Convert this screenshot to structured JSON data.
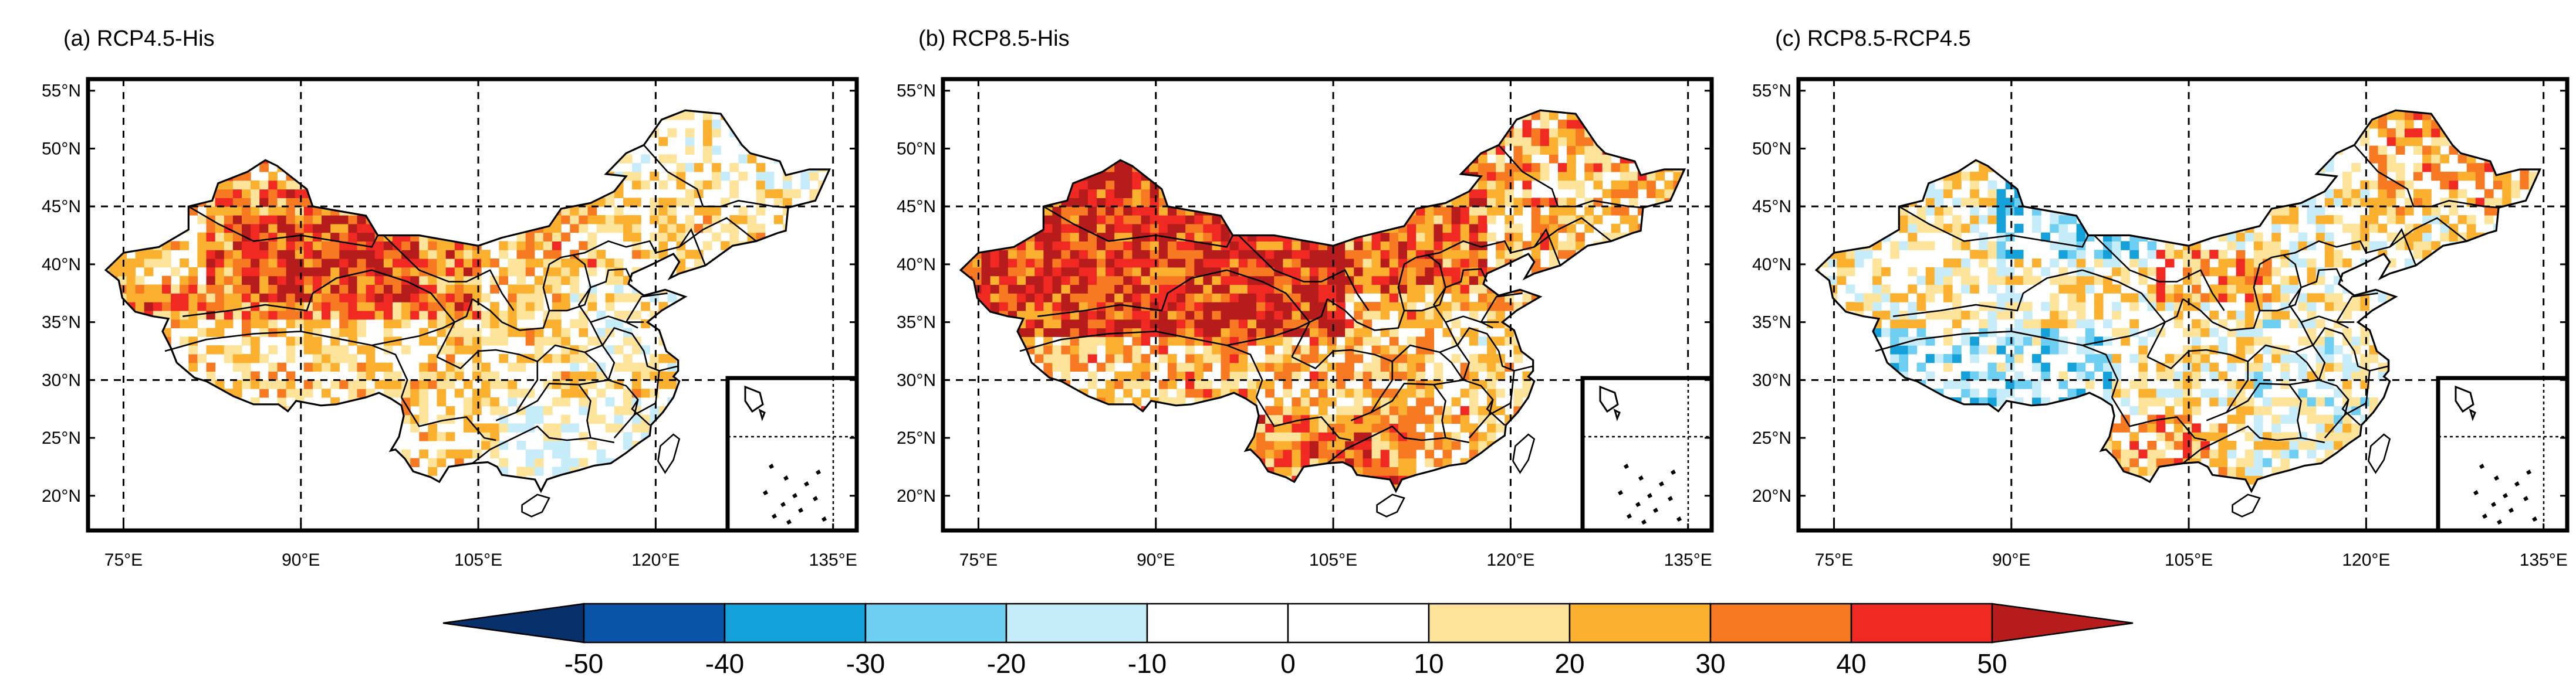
{
  "panels": [
    {
      "title": "(a) RCP4.5-His",
      "pattern": "a"
    },
    {
      "title": "(b) RCP8.5-His",
      "pattern": "b"
    },
    {
      "title": "(c) RCP8.5-RCP4.5",
      "pattern": "c"
    }
  ],
  "axes": {
    "lat_labels": [
      "55°N",
      "50°N",
      "45°N",
      "40°N",
      "35°N",
      "30°N",
      "25°N",
      "20°N"
    ],
    "lat_values": [
      55,
      50,
      45,
      40,
      35,
      30,
      25,
      20
    ],
    "lon_labels": [
      "75°E",
      "90°E",
      "105°E",
      "120°E",
      "135°E"
    ],
    "lon_values": [
      75,
      90,
      105,
      120,
      135
    ],
    "lon_range": [
      72,
      137
    ],
    "lat_range": [
      17,
      56
    ],
    "dashed_lat_lines": [
      45,
      30
    ],
    "dashed_lon_lines": [
      75,
      90,
      105,
      120,
      135
    ]
  },
  "colorbar": {
    "tick_labels": [
      "-50",
      "-40",
      "-30",
      "-20",
      "-10",
      "0",
      "10",
      "20",
      "30",
      "40",
      "50"
    ],
    "colors": [
      "#08306b",
      "#0a54a8",
      "#14a0d8",
      "#6fcff2",
      "#c6ecf9",
      "#ffffff",
      "#ffffff",
      "#fde49a",
      "#fbb12f",
      "#f77a22",
      "#f02a23",
      "#b71c1c"
    ]
  },
  "colors": {
    "frame": "#000000",
    "boundary": "#000000"
  }
}
